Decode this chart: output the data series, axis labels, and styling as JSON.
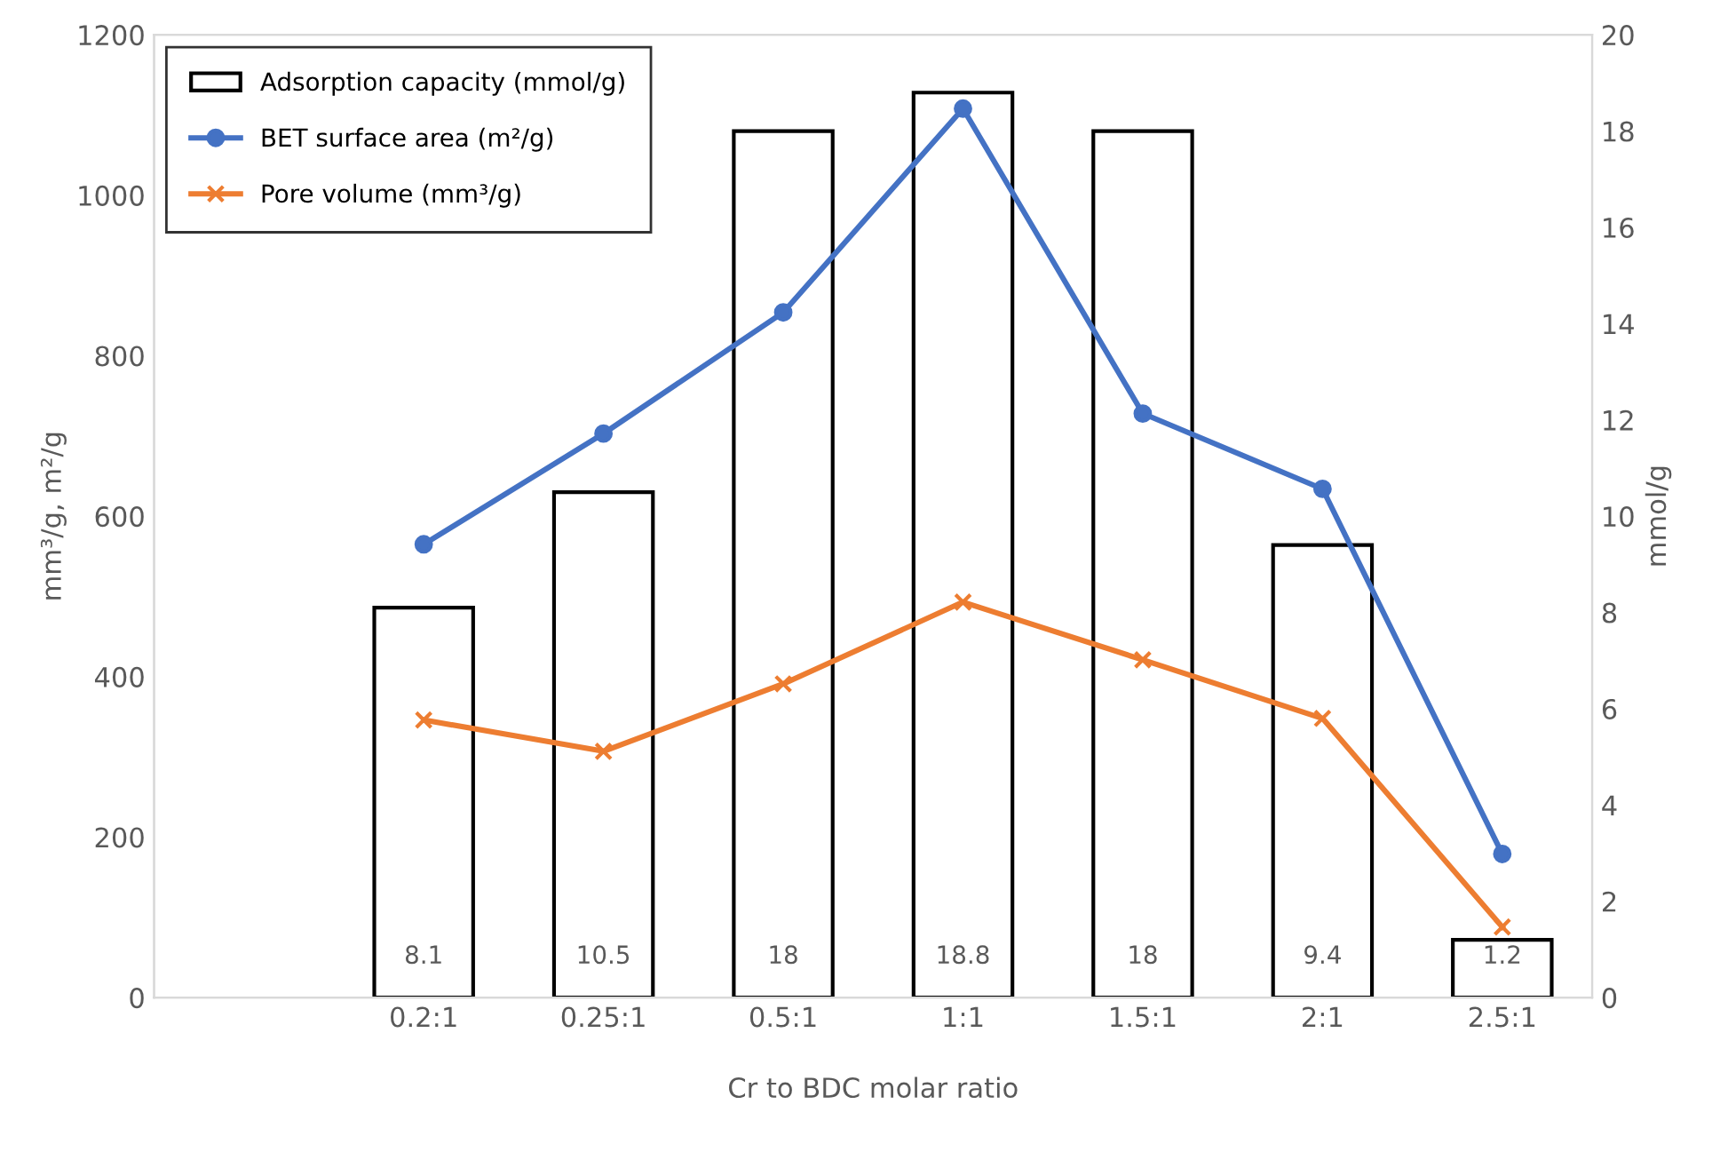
{
  "chart_data": {
    "type": "bar",
    "xlabel": "Cr to BDC molar ratio",
    "ylabel": "mm³/g, m²/g",
    "y2label": "mmol/g",
    "categories": [
      null,
      "0.2:1",
      "0.25:1",
      "0.5:1",
      "1:1",
      "1.5:1",
      "2:1",
      "2.5:1"
    ],
    "series": [
      {
        "name": "Adsorption capacity (mmol/g)",
        "axis": "y2",
        "color": "#ffffff",
        "values": [
          null,
          8.1,
          10.5,
          18,
          18.8,
          18,
          9.4,
          1.2
        ],
        "value_labels": [
          null,
          "8.1",
          "10.5",
          "18",
          "18.8",
          "18",
          "9.4",
          "1.2"
        ]
      },
      {
        "name": "BET surface area (m²/g)",
        "type": "line",
        "color": "#4472c4",
        "marker": "circle",
        "values": [
          null,
          565,
          703,
          854,
          1108,
          728,
          634,
          179
        ]
      },
      {
        "name": "Pore volume (mm³/g)",
        "type": "line",
        "color": "#ed7d31",
        "marker": "cross",
        "values": [
          null,
          346,
          307,
          391,
          493,
          421,
          348,
          88
        ]
      }
    ],
    "ylim": [
      0,
      1200
    ],
    "yticks": [
      0,
      200,
      400,
      600,
      800,
      1000,
      1200
    ],
    "y2lim": [
      0,
      20
    ],
    "y2ticks": [
      0,
      2,
      4,
      6,
      8,
      10,
      12,
      14,
      16,
      18,
      20
    ],
    "grid": false,
    "legend": "top left"
  }
}
